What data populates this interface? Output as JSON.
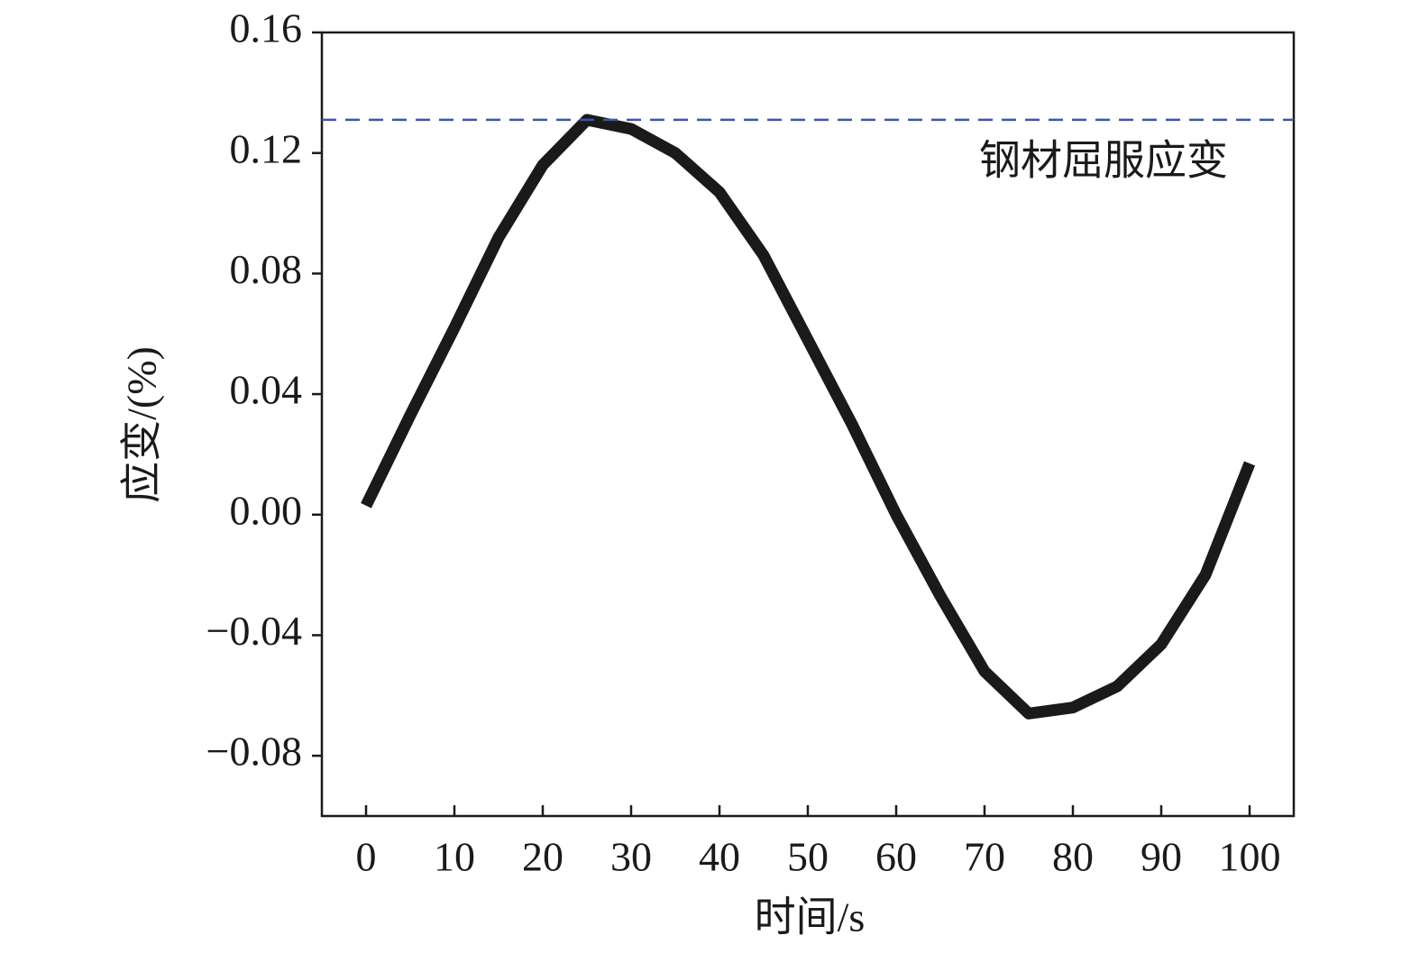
{
  "chart_data": {
    "type": "line",
    "xlabel": "时间/s",
    "ylabel": "应变/(%)",
    "x": [
      0,
      5,
      10,
      15,
      20,
      25,
      30,
      35,
      40,
      45,
      50,
      55,
      60,
      65,
      70,
      75,
      80,
      85,
      90,
      95,
      100
    ],
    "series": [
      {
        "color": "#1a1a1a",
        "values": [
          0.003,
          0.033,
          0.062,
          0.092,
          0.116,
          0.131,
          0.128,
          0.12,
          0.107,
          0.086,
          0.058,
          0.03,
          0.0,
          -0.027,
          -0.052,
          -0.066,
          -0.064,
          -0.057,
          -0.043,
          -0.02,
          0.017
        ]
      }
    ],
    "reference_line": {
      "value": 0.131,
      "label": "钢材屈服应变",
      "color": "#3a56a8"
    },
    "xlim": [
      -5,
      105
    ],
    "ylim": [
      -0.1,
      0.16
    ],
    "xticks": [
      0,
      10,
      20,
      30,
      40,
      50,
      60,
      70,
      80,
      90,
      100
    ],
    "yticks": [
      {
        "value": -0.08,
        "label": "−0.08"
      },
      {
        "value": -0.04,
        "label": "−0.04"
      },
      {
        "value": 0,
        "label": "0.00"
      },
      0.04,
      0.08,
      0.12,
      0.16
    ]
  }
}
